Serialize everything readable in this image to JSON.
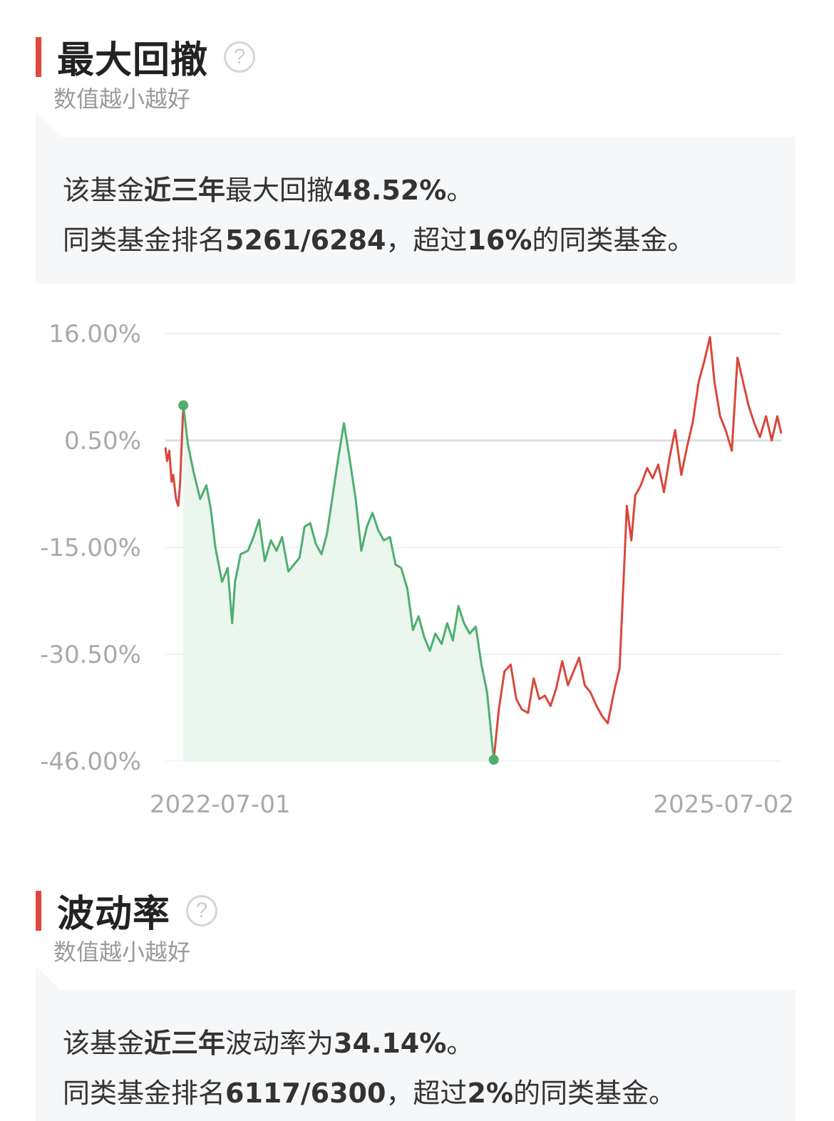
{
  "drawdown_section": {
    "title": "最大回撤",
    "help_icon": "question-circle-icon",
    "subtitle": "数值越小越好",
    "summary": {
      "line1": {
        "p1": "该基金",
        "p2": "近三年",
        "p3": "最大回撤",
        "p4": "48.52%",
        "p5": "。"
      },
      "line2": {
        "p1": "同类基金排名",
        "p2": "5261/6284",
        "p3": "，超过",
        "p4": "16%",
        "p5": "的同类基金。"
      }
    }
  },
  "volatility_section": {
    "title": "波动率",
    "help_icon": "question-circle-icon",
    "subtitle": "数值越小越好",
    "summary": {
      "line1": {
        "p1": "该基金",
        "p2": "近三年",
        "p3": "波动率为",
        "p4": "34.14%",
        "p5": "。"
      },
      "line2": {
        "p1": "同类基金排名",
        "p2": "6117/6300",
        "p3": "，超过",
        "p4": "2%",
        "p5": "的同类基金。"
      }
    }
  },
  "chart_data": {
    "type": "line",
    "ylabel_ticks": [
      "16.00%",
      "0.50%",
      "-15.00%",
      "-30.50%",
      "-46.00%"
    ],
    "y_ticks": [
      16.0,
      0.5,
      -15.0,
      -30.5,
      -46.0
    ],
    "ylim": [
      -46.0,
      16.0
    ],
    "x_labels": [
      "2022-07-01",
      "2025-07-02"
    ],
    "x_range": [
      "2022-07-01",
      "2025-07-02"
    ],
    "colors": {
      "normal": "#d9473b",
      "drawdown": "#4fae6f",
      "drawdown_fill": "#eaf6ee",
      "grid": "#eeeeee",
      "zero_line": "#dddddd",
      "tick_label": "#a9a9a9"
    },
    "drawdown_peak": {
      "date": "2022-08-02",
      "value": 5.6
    },
    "drawdown_trough": {
      "date": "2024-02-06",
      "value": -45.8
    },
    "x": [
      "2022-07-01",
      "2022-07-04",
      "2022-07-08",
      "2022-07-12",
      "2022-07-15",
      "2022-07-20",
      "2022-07-24",
      "2022-07-27",
      "2022-08-02",
      "2022-08-10",
      "2022-08-20",
      "2022-09-01",
      "2022-09-12",
      "2022-09-20",
      "2022-09-28",
      "2022-10-10",
      "2022-10-20",
      "2022-10-28",
      "2022-11-02",
      "2022-11-12",
      "2022-11-25",
      "2022-12-05",
      "2022-12-15",
      "2022-12-25",
      "2023-01-05",
      "2023-01-15",
      "2023-01-25",
      "2023-02-05",
      "2023-02-15",
      "2023-02-25",
      "2023-03-06",
      "2023-03-16",
      "2023-03-26",
      "2023-04-05",
      "2023-04-15",
      "2023-04-25",
      "2023-05-05",
      "2023-05-15",
      "2023-05-25",
      "2023-06-05",
      "2023-06-15",
      "2023-06-25",
      "2023-07-05",
      "2023-07-15",
      "2023-07-25",
      "2023-08-05",
      "2023-08-15",
      "2023-08-25",
      "2023-09-05",
      "2023-09-15",
      "2023-09-25",
      "2023-10-05",
      "2023-10-15",
      "2023-10-25",
      "2023-11-05",
      "2023-11-15",
      "2023-11-25",
      "2023-12-05",
      "2023-12-15",
      "2023-12-25",
      "2024-01-05",
      "2024-01-15",
      "2024-01-25",
      "2024-02-06",
      "2024-02-15",
      "2024-02-25",
      "2024-03-07",
      "2024-03-17",
      "2024-03-27",
      "2024-04-07",
      "2024-04-17",
      "2024-04-27",
      "2024-05-07",
      "2024-05-17",
      "2024-05-27",
      "2024-06-07",
      "2024-06-17",
      "2024-06-27",
      "2024-07-07",
      "2024-07-17",
      "2024-07-27",
      "2024-08-07",
      "2024-08-17",
      "2024-08-27",
      "2024-09-07",
      "2024-09-17",
      "2024-09-24",
      "2024-09-30",
      "2024-10-08",
      "2024-10-15",
      "2024-10-25",
      "2024-11-05",
      "2024-11-15",
      "2024-11-25",
      "2024-12-05",
      "2024-12-15",
      "2024-12-25",
      "2025-01-05",
      "2025-01-15",
      "2025-01-25",
      "2025-02-05",
      "2025-02-15",
      "2025-02-25",
      "2025-03-05",
      "2025-03-15",
      "2025-03-25",
      "2025-04-05",
      "2025-04-15",
      "2025-04-25",
      "2025-05-05",
      "2025-05-15",
      "2025-05-25",
      "2025-06-05",
      "2025-06-15",
      "2025-06-25",
      "2025-07-02"
    ],
    "series": [
      {
        "values": [
          -0.5,
          -2.5,
          -1.0,
          -5.5,
          -4.5,
          -8.0,
          -9.0,
          -6.0,
          5.6,
          0.0,
          -4.0,
          -8.0,
          -6.0,
          -9.5,
          -15.0,
          -20.0,
          -18.0,
          -26.0,
          -20.0,
          -16.0,
          -15.5,
          -13.5,
          -11.0,
          -17.0,
          -14.0,
          -15.5,
          -13.5,
          -18.5,
          -17.5,
          -16.5,
          -12.0,
          -11.5,
          -14.5,
          -16.0,
          -13.0,
          -7.5,
          -2.0,
          3.0,
          -2.0,
          -8.0,
          -15.5,
          -12.0,
          -10.0,
          -12.5,
          -14.0,
          -13.5,
          -17.5,
          -18.0,
          -21.0,
          -27.0,
          -25.0,
          -28.0,
          -30.0,
          -27.5,
          -29.0,
          -26.0,
          -28.5,
          -23.5,
          -26.0,
          -27.5,
          -26.5,
          -32.0,
          -36.0,
          -45.8,
          -38.5,
          -33.0,
          -32.0,
          -37.0,
          -38.5,
          -39.0,
          -34.0,
          -37.0,
          -36.5,
          -38.0,
          -35.5,
          -31.5,
          -35.0,
          -33.0,
          -31.0,
          -35.0,
          -36.0,
          -38.0,
          -39.5,
          -40.5,
          -36.0,
          -32.5,
          -20.0,
          -9.0,
          -14.0,
          -7.5,
          -6.0,
          -3.5,
          -5.0,
          -3.0,
          -7.0,
          -2.0,
          2.0,
          -4.5,
          -0.5,
          3.0,
          9.0,
          12.0,
          15.5,
          9.0,
          4.0,
          2.0,
          -1.0,
          12.5,
          9.0,
          5.5,
          3.0,
          1.0,
          4.0,
          0.5,
          4.0,
          1.5
        ]
      }
    ]
  }
}
